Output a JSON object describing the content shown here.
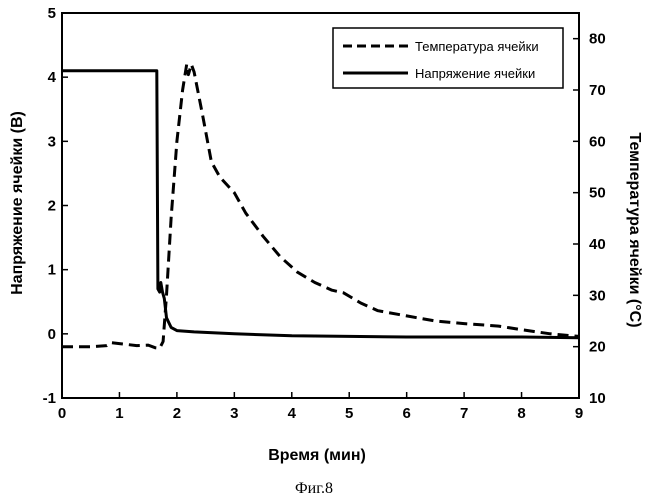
{
  "caption": "Фиг.8",
  "chart_data": {
    "type": "line",
    "xlabel": "Время (мин)",
    "ylabel": "Напряжение ячейки (В)",
    "y2label": "Температура ячейки (°C)",
    "xlim": [
      0,
      9
    ],
    "ylim": [
      -1,
      5
    ],
    "y2lim": [
      10,
      85
    ],
    "x_ticks": [
      0,
      1,
      2,
      3,
      4,
      5,
      6,
      7,
      8,
      9
    ],
    "y_ticks": [
      -1,
      0,
      1,
      2,
      3,
      4,
      5
    ],
    "y2_ticks": [
      10,
      20,
      30,
      40,
      50,
      60,
      70,
      80
    ],
    "legend_position": "top-right",
    "series": [
      {
        "name": "Температура ячейки",
        "axis": "right",
        "style": "dashed",
        "points": [
          [
            0,
            20
          ],
          [
            0.5,
            20
          ],
          [
            0.78,
            20.2
          ],
          [
            0.85,
            20.8
          ],
          [
            1.0,
            20.6
          ],
          [
            1.3,
            20.2
          ],
          [
            1.5,
            20.3
          ],
          [
            1.62,
            19.8
          ],
          [
            1.7,
            19.7
          ],
          [
            1.76,
            21
          ],
          [
            1.82,
            30
          ],
          [
            1.9,
            45
          ],
          [
            2.0,
            60
          ],
          [
            2.1,
            70
          ],
          [
            2.17,
            75
          ],
          [
            2.2,
            73
          ],
          [
            2.25,
            75
          ],
          [
            2.3,
            73.5
          ],
          [
            2.45,
            65
          ],
          [
            2.6,
            56
          ],
          [
            2.75,
            53
          ],
          [
            3.0,
            50
          ],
          [
            3.2,
            46
          ],
          [
            3.5,
            41.5
          ],
          [
            3.8,
            37.5
          ],
          [
            4.1,
            34.5
          ],
          [
            4.4,
            32.5
          ],
          [
            4.7,
            31
          ],
          [
            4.9,
            30.5
          ],
          [
            5.2,
            28.5
          ],
          [
            5.5,
            27
          ],
          [
            6.0,
            26
          ],
          [
            6.5,
            25
          ],
          [
            7.0,
            24.5
          ],
          [
            7.6,
            24
          ],
          [
            8.0,
            23.3
          ],
          [
            8.5,
            22.5
          ],
          [
            9.0,
            22
          ]
        ]
      },
      {
        "name": "Напряжение ячейки",
        "axis": "left",
        "style": "solid",
        "points": [
          [
            0,
            4.1
          ],
          [
            1.65,
            4.1
          ],
          [
            1.67,
            0.7
          ],
          [
            1.7,
            0.65
          ],
          [
            1.72,
            0.8
          ],
          [
            1.75,
            0.65
          ],
          [
            1.78,
            0.55
          ],
          [
            1.82,
            0.25
          ],
          [
            1.9,
            0.1
          ],
          [
            2.0,
            0.05
          ],
          [
            2.3,
            0.03
          ],
          [
            3.0,
            0.0
          ],
          [
            4.0,
            -0.03
          ],
          [
            5.0,
            -0.04
          ],
          [
            6.0,
            -0.05
          ],
          [
            7.0,
            -0.05
          ],
          [
            8.0,
            -0.05
          ],
          [
            9.0,
            -0.06
          ]
        ]
      }
    ]
  }
}
